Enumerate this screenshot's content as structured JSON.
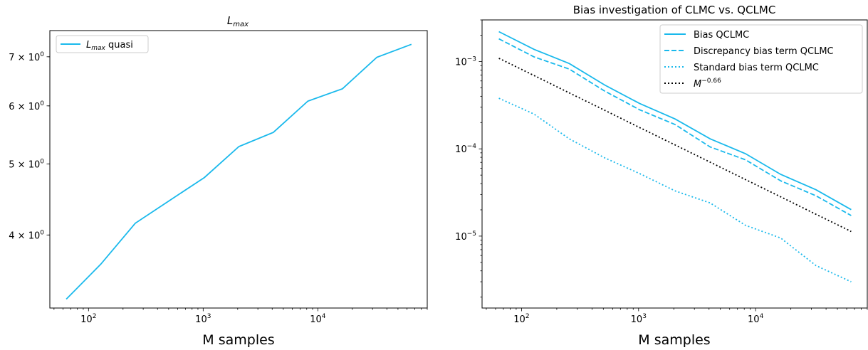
{
  "chart_data": [
    {
      "type": "line",
      "title_main": "L",
      "title_sub": "max",
      "xlabel": "M samples",
      "xscale": "log",
      "yscale": "log",
      "xlim": [
        46,
        90000
      ],
      "ylim": [
        3.18,
        7.6
      ],
      "xticks": [
        {
          "value": 100,
          "base": "10",
          "exp": "2"
        },
        {
          "value": 1000,
          "base": "10",
          "exp": "3"
        },
        {
          "value": 10000,
          "base": "10",
          "exp": "4"
        }
      ],
      "yticks": [
        {
          "value": 4,
          "mant": "4 × 10",
          "exp": "0"
        },
        {
          "value": 5,
          "mant": "5 × 10",
          "exp": "0"
        },
        {
          "value": 6,
          "mant": "6 × 10",
          "exp": "0"
        },
        {
          "value": 7,
          "mant": "7 × 10",
          "exp": "0"
        }
      ],
      "legend_position": "upper-left",
      "x": [
        64,
        128,
        256,
        512,
        1024,
        2048,
        4096,
        8192,
        16384,
        32768,
        65536
      ],
      "series": [
        {
          "name_main": "L",
          "name_sub": "max",
          "name_rest": " quasi",
          "color": "#1ab9ec",
          "dash": "solid",
          "values": [
            3.27,
            3.65,
            4.15,
            4.46,
            4.79,
            5.28,
            5.52,
            6.09,
            6.33,
            6.99,
            7.28
          ]
        }
      ]
    },
    {
      "type": "line",
      "title": "Bias investigation of CLMC vs. QCLMC",
      "xlabel": "M samples",
      "xscale": "log",
      "yscale": "log",
      "xlim": [
        46,
        90000
      ],
      "ylim": [
        1.5e-06,
        0.003
      ],
      "xticks": [
        {
          "value": 100,
          "base": "10",
          "exp": "2"
        },
        {
          "value": 1000,
          "base": "10",
          "exp": "3"
        },
        {
          "value": 10000,
          "base": "10",
          "exp": "4"
        }
      ],
      "yticks": [
        {
          "value": 0.001,
          "base": "10",
          "exp": "−3"
        },
        {
          "value": 0.0001,
          "base": "10",
          "exp": "−4"
        },
        {
          "value": 1e-05,
          "base": "10",
          "exp": "−5"
        }
      ],
      "legend_position": "upper-right",
      "x": [
        64,
        128,
        256,
        512,
        1024,
        2048,
        4096,
        8192,
        16384,
        32768,
        65536
      ],
      "series": [
        {
          "name": "Bias QCLMC",
          "color": "#1ab9ec",
          "dash": "solid",
          "values": [
            0.0022,
            0.00138,
            0.00095,
            0.00054,
            0.00033,
            0.00022,
            0.00013,
            8.8e-05,
            5.1e-05,
            3.4e-05,
            2.01e-05
          ]
        },
        {
          "name": "Discrepancy bias term QCLMC",
          "color": "#1ab9ec",
          "dash": "dashed",
          "values": [
            0.00182,
            0.00113,
            0.00082,
            0.00046,
            0.00028,
            0.00019,
            0.000105,
            7.5e-05,
            4.3e-05,
            2.9e-05,
            1.72e-05
          ]
        },
        {
          "name": "Standard bias term QCLMC",
          "color": "#1ab9ec",
          "dash": "dotted",
          "values": [
            0.00038,
            0.00025,
            0.00013,
            7.9e-05,
            5.2e-05,
            3.3e-05,
            2.4e-05,
            1.33e-05,
            9.5e-06,
            4.6e-06,
            3e-06
          ]
        },
        {
          "name_main": "M",
          "name_sup": "−0.66",
          "color": "#000000",
          "dash": "dotted",
          "values": [
            0.00109,
            0.000691,
            0.000437,
            0.000277,
            0.000175,
            0.000111,
            7.03e-05,
            4.45e-05,
            2.82e-05,
            1.78e-05,
            1.13e-05
          ]
        }
      ]
    }
  ]
}
